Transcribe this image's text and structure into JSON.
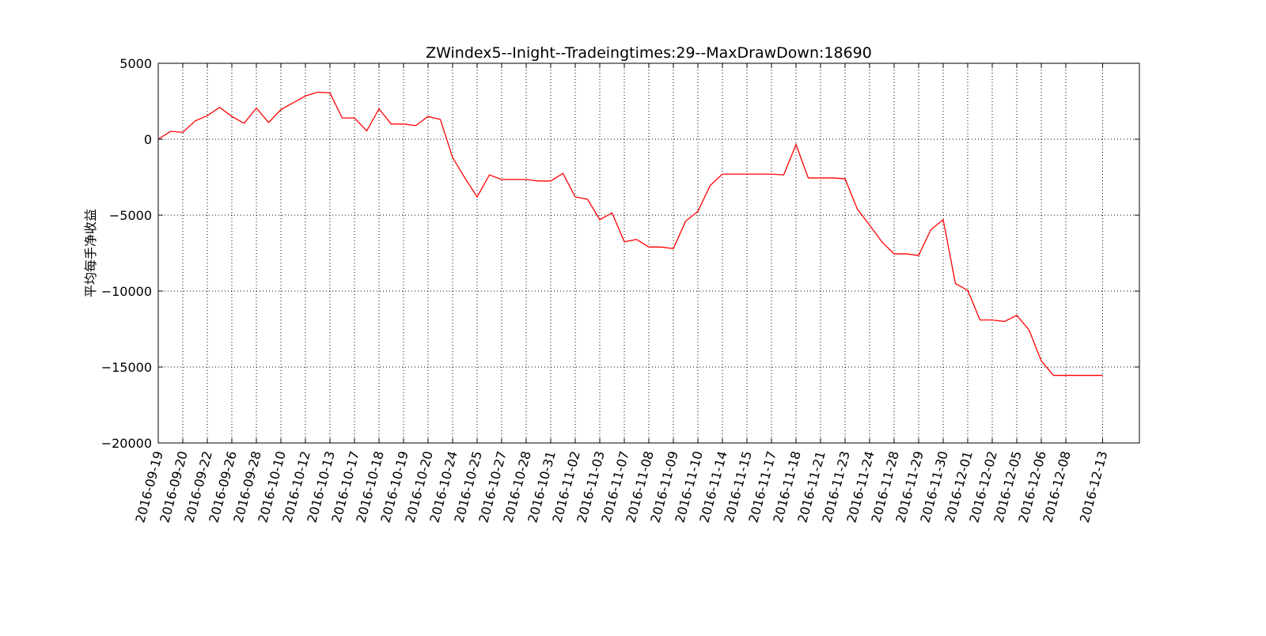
{
  "chart_data": {
    "type": "line",
    "title": "ZWindex5--Inight--Tradeingtimes:29--MaxDrawDown:18690",
    "xlabel": "",
    "ylabel": "平均每手净收益",
    "ylim": [
      -20000,
      5000
    ],
    "yticks": [
      5000,
      0,
      -5000,
      -10000,
      -15000,
      -20000
    ],
    "ytick_labels": [
      "5000",
      "0",
      "−5000",
      "−10000",
      "−15000",
      "−20000"
    ],
    "xlim": [
      0,
      80
    ],
    "xtick_positions": [
      0,
      2,
      4,
      6,
      8,
      10,
      12,
      14,
      16,
      18,
      20,
      22,
      24,
      26,
      28,
      30,
      32,
      34,
      36,
      38,
      40,
      42,
      44,
      46,
      48,
      50,
      52,
      54,
      56,
      58,
      60,
      62,
      64,
      66,
      68,
      70,
      72,
      74,
      77
    ],
    "xtick_labels": [
      "2016-09-19",
      "2016-09-20",
      "2016-09-22",
      "2016-09-26",
      "2016-09-28",
      "2016-10-10",
      "2016-10-12",
      "2016-10-13",
      "2016-10-17",
      "2016-10-18",
      "2016-10-19",
      "2016-10-20",
      "2016-10-24",
      "2016-10-25",
      "2016-10-27",
      "2016-10-28",
      "2016-10-31",
      "2016-11-02",
      "2016-11-03",
      "2016-11-07",
      "2016-11-08",
      "2016-11-09",
      "2016-11-10",
      "2016-11-14",
      "2016-11-15",
      "2016-11-17",
      "2016-11-18",
      "2016-11-21",
      "2016-11-23",
      "2016-11-24",
      "2016-11-28",
      "2016-11-29",
      "2016-11-30",
      "2016-12-01",
      "2016-12-02",
      "2016-12-05",
      "2016-12-06",
      "2016-12-08",
      "2016-12-13"
    ],
    "grid": true,
    "legend": null,
    "series": [
      {
        "color": "#ff0000",
        "x": [
          0,
          1,
          2,
          3,
          4,
          5,
          6,
          7,
          8,
          9,
          10,
          11,
          12,
          13,
          14,
          15,
          16,
          17,
          18,
          19,
          20,
          21,
          22,
          23,
          24,
          25,
          26,
          27,
          28,
          29,
          30,
          31,
          32,
          33,
          34,
          35,
          36,
          37,
          38,
          39,
          40,
          41,
          42,
          43,
          44,
          45,
          46,
          47,
          48,
          49,
          50,
          51,
          52,
          53,
          54,
          55,
          56,
          57,
          58,
          59,
          60,
          61,
          62,
          63,
          64,
          65,
          66,
          67,
          68,
          69,
          70,
          71,
          72,
          73,
          74,
          75,
          76,
          77
        ],
        "values": [
          0,
          520,
          450,
          1200,
          1550,
          2100,
          1500,
          1050,
          2050,
          1100,
          1950,
          2400,
          2850,
          3100,
          3050,
          1400,
          1400,
          550,
          2000,
          1000,
          1000,
          900,
          1500,
          1300,
          -1200,
          -2550,
          -3800,
          -2350,
          -2650,
          -2650,
          -2650,
          -2750,
          -2750,
          -2250,
          -3800,
          -3950,
          -5300,
          -4850,
          -6750,
          -6600,
          -7100,
          -7100,
          -7200,
          -5400,
          -4750,
          -3050,
          -2300,
          -2300,
          -2300,
          -2300,
          -2300,
          -2350,
          -350,
          -2550,
          -2550,
          -2550,
          -2600,
          -4600,
          -5650,
          -6750,
          -7550,
          -7550,
          -7650,
          -5950,
          -5300,
          -9500,
          -9950,
          -11900,
          -11900,
          -12000,
          -11600,
          -12550,
          -14600,
          -15550,
          -15550,
          -15550,
          -15550,
          -15550
        ]
      }
    ]
  }
}
